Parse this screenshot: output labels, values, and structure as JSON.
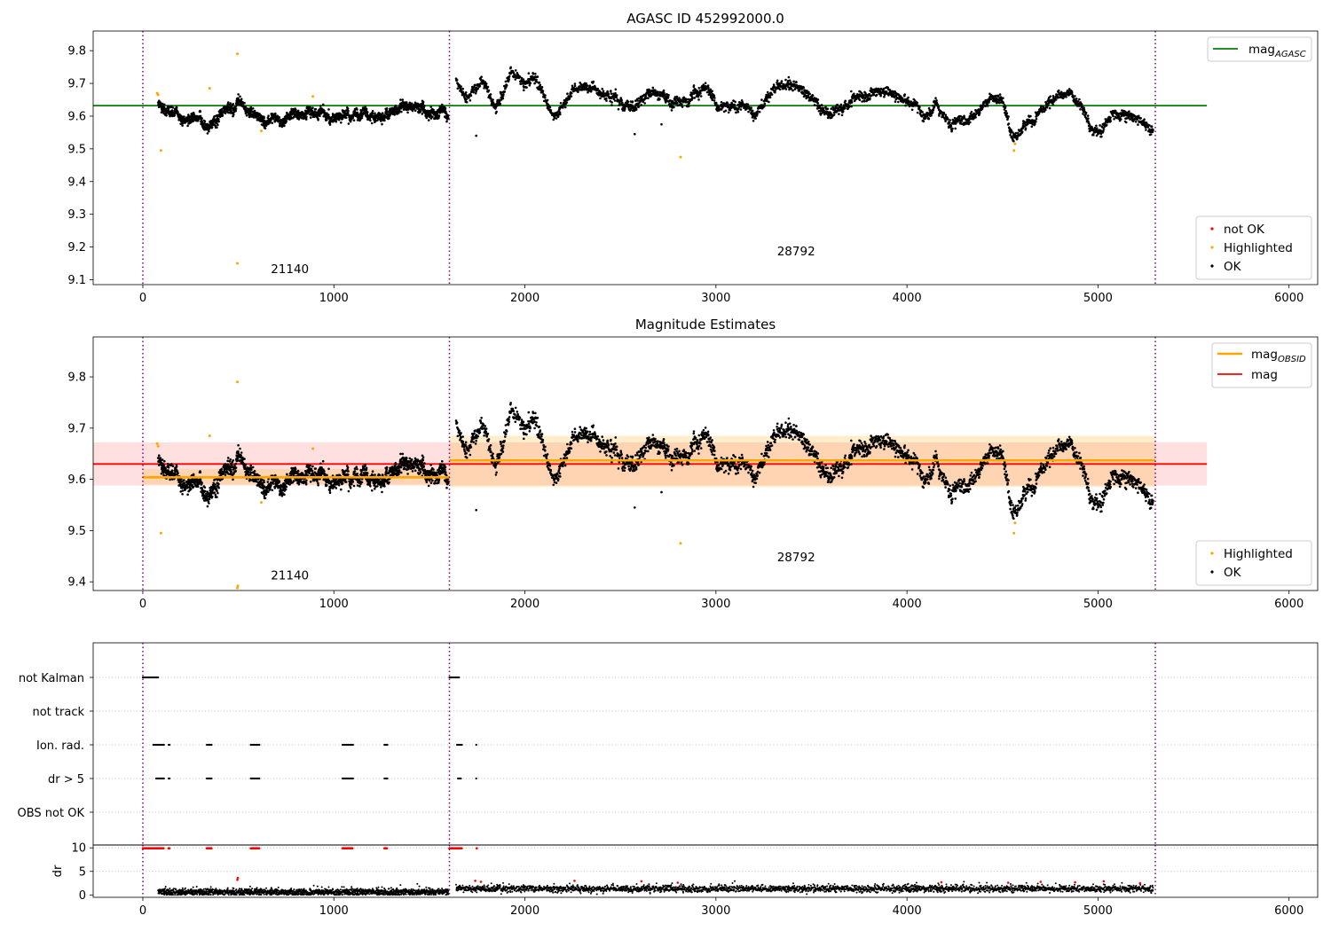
{
  "figure": {
    "obs_boundaries": [
      0,
      1605,
      5300
    ],
    "colors": {
      "boundary": "#800080",
      "ok": "#000000",
      "highlighted": "#ffa500",
      "not_ok": "#ff0000",
      "mag_agasc": "#008000",
      "mag_obsid": "#ffa500",
      "mag": "#ff0000",
      "grid": "#b0b0b0"
    }
  },
  "chart_data": [
    {
      "type": "scatter",
      "title": "AGASC ID 452992000.0",
      "xlim": [
        -260,
        6150
      ],
      "ylim": [
        9.085,
        9.86
      ],
      "xticks": [
        "0",
        "1000",
        "2000",
        "3000",
        "4000",
        "5000",
        "6000"
      ],
      "yticks": [
        "9.1",
        "9.2",
        "9.3",
        "9.4",
        "9.5",
        "9.6",
        "9.7",
        "9.8"
      ],
      "lines": [
        {
          "name": "mag_AGASC",
          "label_base": "mag",
          "label_sub": "AGASC",
          "y": 9.632,
          "x": [
            -260,
            5570
          ],
          "color": "#008000"
        }
      ],
      "legend_lines": {
        "position": "upper right"
      },
      "legend_points": {
        "position": "lower right",
        "entries": [
          "not OK",
          "Highlighted",
          "OK"
        ]
      },
      "annotations": [
        {
          "text": "21140",
          "x": 800,
          "y": 9.12
        },
        {
          "text": "28792",
          "x": 3450,
          "y": 9.175
        }
      ],
      "segments": [
        {
          "x": [
            80,
            200,
            350,
            500,
            650,
            800,
            950,
            1100,
            1250,
            1400,
            1500,
            1600
          ],
          "y": [
            9.64,
            9.595,
            9.59,
            9.63,
            9.575,
            9.605,
            9.61,
            9.6,
            9.595,
            9.63,
            9.615,
            9.6
          ]
        },
        {
          "x": [
            1640,
            1700,
            1780,
            1850,
            1920,
            2000,
            2060,
            2150,
            2250,
            2350,
            2450,
            2550,
            2650,
            2750,
            2850,
            2950,
            3020,
            3100,
            3200,
            3300,
            3400,
            3500,
            3600,
            3700,
            3800,
            3900,
            4000,
            4080,
            4150,
            4250,
            4350,
            4450,
            4500,
            4550,
            4600,
            4680,
            4750,
            4850,
            4950,
            5000,
            5100,
            5200,
            5290
          ],
          "y": [
            9.71,
            9.67,
            9.7,
            9.63,
            9.715,
            9.69,
            9.7,
            9.595,
            9.68,
            9.69,
            9.655,
            9.625,
            9.67,
            9.655,
            9.65,
            9.68,
            9.62,
            9.63,
            9.615,
            9.69,
            9.7,
            9.66,
            9.6,
            9.645,
            9.655,
            9.68,
            9.64,
            9.59,
            9.63,
            9.59,
            9.62,
            9.65,
            9.645,
            9.53,
            9.545,
            9.6,
            9.65,
            9.67,
            9.59,
            9.575,
            9.6,
            9.6,
            9.55
          ]
        }
      ],
      "highlighted": [
        {
          "x": 75,
          "y": 9.67
        },
        {
          "x": 80,
          "y": 9.665
        },
        {
          "x": 95,
          "y": 9.495
        },
        {
          "x": 350,
          "y": 9.685
        },
        {
          "x": 495,
          "y": 9.79
        },
        {
          "x": 495,
          "y": 9.15
        },
        {
          "x": 620,
          "y": 9.555
        },
        {
          "x": 890,
          "y": 9.66
        },
        {
          "x": 2815,
          "y": 9.475
        },
        {
          "x": 4560,
          "y": 9.495
        },
        {
          "x": 4565,
          "y": 9.515
        }
      ],
      "ok_outliers": [
        {
          "x": 1745,
          "y": 9.54
        },
        {
          "x": 2575,
          "y": 9.545
        },
        {
          "x": 2715,
          "y": 9.575
        }
      ]
    },
    {
      "type": "scatter",
      "title": "Magnitude Estimates",
      "xlim": [
        -260,
        6150
      ],
      "ylim": [
        9.383,
        9.878
      ],
      "xticks": [
        "0",
        "1000",
        "2000",
        "3000",
        "4000",
        "5000",
        "6000"
      ],
      "yticks": [
        "9.4",
        "9.5",
        "9.6",
        "9.7",
        "9.8"
      ],
      "lines": [
        {
          "name": "mag_OBSID",
          "label_base": "mag",
          "label_sub": "OBSID",
          "color": "#ffa500",
          "segments": [
            {
              "x": [
                0,
                1605
              ],
              "y": 9.604,
              "band": [
                9.59,
                9.62
              ]
            },
            {
              "x": [
                1605,
                5300
              ],
              "y": 9.637,
              "band": [
                9.585,
                9.685
              ]
            }
          ]
        },
        {
          "name": "mag",
          "label_base": "mag",
          "label_sub": "",
          "color": "#ff0000",
          "y": 9.63,
          "x": [
            -260,
            5570
          ],
          "band": [
            9.588,
            9.672
          ]
        }
      ],
      "legend_lines": {
        "position": "upper right"
      },
      "legend_points": {
        "position": "lower right",
        "entries": [
          "Highlighted",
          "OK"
        ]
      },
      "annotations": [
        {
          "text": "21140",
          "x": 800,
          "y": 9.405
        },
        {
          "text": "28792",
          "x": 3450,
          "y": 9.44
        }
      ],
      "highlighted_extra": [
        {
          "x": 495,
          "y": 9.388
        },
        {
          "x": 497,
          "y": 9.392
        }
      ]
    },
    {
      "type": "scatter",
      "title": "",
      "xlim": [
        -260,
        6150
      ],
      "xticks": [
        "0",
        "1000",
        "2000",
        "3000",
        "4000",
        "5000",
        "6000"
      ],
      "flag_categories": [
        "not Kalman",
        "not track",
        "Ion. rad.",
        "dr > 5",
        "OBS not OK"
      ],
      "flags": {
        "not Kalman": [
          [
            0,
            80
          ],
          [
            1605,
            1655
          ]
        ],
        "not track": [],
        "Ion. rad.": [
          [
            55,
            110
          ],
          [
            135,
            140
          ],
          [
            335,
            360
          ],
          [
            565,
            610
          ],
          [
            1045,
            1100
          ],
          [
            1265,
            1280
          ],
          [
            1645,
            1670
          ],
          [
            1745,
            1748
          ]
        ],
        "dr > 5": [
          [
            70,
            110
          ],
          [
            135,
            140
          ],
          [
            335,
            360
          ],
          [
            565,
            610
          ],
          [
            1045,
            1100
          ],
          [
            1265,
            1280
          ],
          [
            1650,
            1665
          ],
          [
            1745,
            1748
          ]
        ],
        "OBS not OK": []
      },
      "dr_ylabel": "dr",
      "dr_yticks": [
        "0",
        "5",
        "10"
      ],
      "dr_ylim": [
        -0.5,
        10.6
      ],
      "dr_clipped": [
        [
          0,
          110
        ],
        [
          135,
          140
        ],
        [
          335,
          360
        ],
        [
          565,
          610
        ],
        [
          1045,
          1100
        ],
        [
          1265,
          1280
        ],
        [
          1605,
          1670
        ],
        [
          1748,
          1750
        ]
      ],
      "dr_red_points": [
        {
          "x": 495,
          "y": 3.2
        },
        {
          "x": 497,
          "y": 3.6
        },
        {
          "x": 1740,
          "y": 3.0
        },
        {
          "x": 1770,
          "y": 2.8
        },
        {
          "x": 2260,
          "y": 3.0
        },
        {
          "x": 2610,
          "y": 2.9
        },
        {
          "x": 2800,
          "y": 2.6
        },
        {
          "x": 4180,
          "y": 2.7
        },
        {
          "x": 4530,
          "y": 2.6
        },
        {
          "x": 4700,
          "y": 2.8
        },
        {
          "x": 4880,
          "y": 2.7
        },
        {
          "x": 5030,
          "y": 2.9
        },
        {
          "x": 5220,
          "y": 2.5
        }
      ]
    }
  ]
}
